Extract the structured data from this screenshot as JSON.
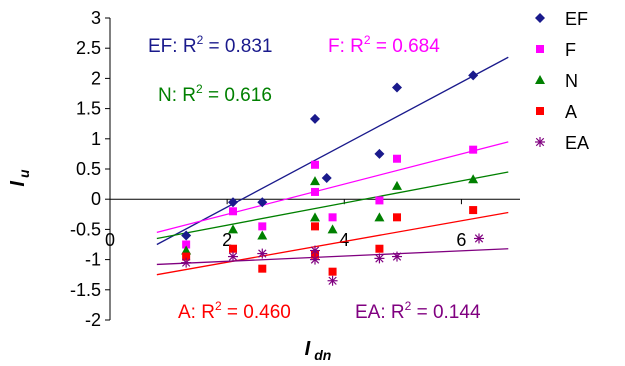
{
  "chart_data": {
    "type": "scatter",
    "title": "",
    "xlabel": "I",
    "xlabel_sub": "dn",
    "ylabel": "I",
    "ylabel_sub": "u",
    "xlim": [
      0,
      7
    ],
    "ylim": [
      -2,
      3
    ],
    "x_ticks": [
      {
        "value": 0,
        "label": "0"
      },
      {
        "value": 2,
        "label": "2"
      },
      {
        "value": 4,
        "label": "4"
      },
      {
        "value": 6,
        "label": "6"
      }
    ],
    "y_ticks": [
      {
        "value": 3,
        "label": "3"
      },
      {
        "value": 2.5,
        "label": "2.5"
      },
      {
        "value": 2,
        "label": "2"
      },
      {
        "value": 1.5,
        "label": "1.5"
      },
      {
        "value": 1,
        "label": "1"
      },
      {
        "value": 0.5,
        "label": "0.5"
      },
      {
        "value": 0,
        "label": "0"
      },
      {
        "value": -0.5,
        "label": "-0.5"
      },
      {
        "value": -1,
        "label": "-1"
      },
      {
        "value": -1.5,
        "label": "-1.5"
      },
      {
        "value": -2,
        "label": "-2"
      }
    ],
    "grid": false,
    "legend_position": "right",
    "series": [
      {
        "name": "EF",
        "color": "#1a1a8c",
        "marker": "diamond",
        "points": [
          [
            1.3,
            -0.6
          ],
          [
            2.1,
            -0.05
          ],
          [
            2.6,
            -0.05
          ],
          [
            3.5,
            1.33
          ],
          [
            3.7,
            0.35
          ],
          [
            4.6,
            0.75
          ],
          [
            4.9,
            1.85
          ],
          [
            6.2,
            2.05
          ]
        ],
        "trend": [
          [
            0.8,
            -0.75
          ],
          [
            6.8,
            2.35
          ]
        ],
        "annotation": {
          "label": "EF: R",
          "sup": "2",
          "value": " = 0.831"
        }
      },
      {
        "name": "F",
        "color": "#ff00ff",
        "marker": "square",
        "points": [
          [
            1.3,
            -0.75
          ],
          [
            2.1,
            -0.2
          ],
          [
            2.6,
            -0.45
          ],
          [
            3.5,
            0.57
          ],
          [
            3.5,
            0.12
          ],
          [
            3.8,
            -0.3
          ],
          [
            4.6,
            -0.02
          ],
          [
            4.9,
            0.67
          ],
          [
            6.2,
            0.82
          ]
        ],
        "trend": [
          [
            0.8,
            -0.55
          ],
          [
            6.8,
            0.95
          ]
        ],
        "annotation": {
          "label": "F: R",
          "sup": "2",
          "value": " = 0.684"
        }
      },
      {
        "name": "N",
        "color": "#008000",
        "marker": "triangle",
        "points": [
          [
            1.3,
            -0.85
          ],
          [
            2.1,
            -0.5
          ],
          [
            2.6,
            -0.6
          ],
          [
            3.5,
            0.3
          ],
          [
            3.5,
            -0.3
          ],
          [
            3.8,
            -0.5
          ],
          [
            4.6,
            -0.3
          ],
          [
            4.9,
            0.22
          ],
          [
            6.2,
            0.33
          ]
        ],
        "trend": [
          [
            0.8,
            -0.65
          ],
          [
            6.8,
            0.45
          ]
        ],
        "annotation": {
          "label": "N: R",
          "sup": "2",
          "value": " = 0.616"
        }
      },
      {
        "name": "A",
        "color": "#ff0000",
        "marker": "square",
        "points": [
          [
            1.3,
            -0.95
          ],
          [
            2.1,
            -0.82
          ],
          [
            2.6,
            -1.15
          ],
          [
            3.5,
            -0.45
          ],
          [
            3.5,
            -0.92
          ],
          [
            3.8,
            -1.2
          ],
          [
            4.6,
            -0.82
          ],
          [
            4.9,
            -0.3
          ],
          [
            6.2,
            -0.18
          ]
        ],
        "trend": [
          [
            0.8,
            -1.25
          ],
          [
            6.8,
            -0.22
          ]
        ],
        "annotation": {
          "label": "A: R",
          "sup": "2",
          "value": " = 0.460"
        }
      },
      {
        "name": "EA",
        "color": "#800080",
        "marker": "asterisk",
        "points": [
          [
            1.3,
            -1.05
          ],
          [
            2.1,
            -0.95
          ],
          [
            2.6,
            -0.9
          ],
          [
            3.5,
            -1.0
          ],
          [
            3.5,
            -0.85
          ],
          [
            3.8,
            -1.35
          ],
          [
            4.6,
            -0.98
          ],
          [
            4.9,
            -0.95
          ],
          [
            6.3,
            -0.65
          ]
        ],
        "trend": [
          [
            0.8,
            -1.08
          ],
          [
            6.8,
            -0.82
          ]
        ],
        "annotation": {
          "label": "EA: R",
          "sup": "2",
          "value": " = 0.144"
        }
      }
    ]
  }
}
